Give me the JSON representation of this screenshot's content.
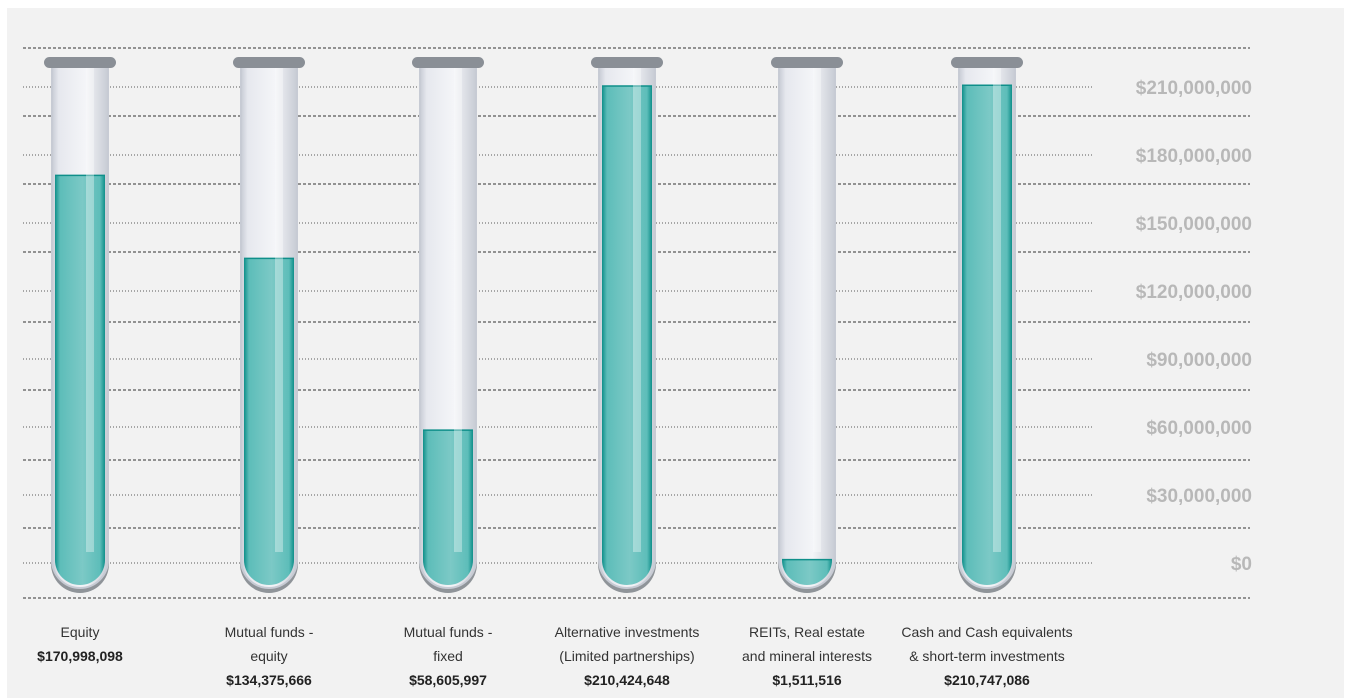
{
  "colors": {
    "liquid": "#5dbdb9",
    "liquid_edge": "#0f8f8a",
    "tube_glass": "#e6e8ee",
    "tube_outline": "#c7cbd4",
    "cap": "#8a8f96",
    "grid": "#333333",
    "tick_text": "#b8b8b8"
  },
  "chart_data": {
    "type": "bar",
    "style": "test-tube",
    "ylim": [
      0,
      210000000
    ],
    "y_ticks": [
      0,
      30000000,
      60000000,
      90000000,
      120000000,
      150000000,
      180000000,
      210000000
    ],
    "y_tick_labels": [
      "$0",
      "$30,000,000",
      "$60,000,000",
      "$90,000,000",
      "$120,000,000",
      "$150,000,000",
      "$180,000,000",
      "$210,000,000"
    ],
    "categories": [
      [
        "Equity"
      ],
      [
        "Mutual funds -",
        "equity"
      ],
      [
        "Mutual funds -",
        "fixed"
      ],
      [
        "Alternative investments",
        "(Limited partnerships)"
      ],
      [
        "REITs, Real estate",
        "and mineral interests"
      ],
      [
        "Cash and Cash equivalents",
        "& short-term investments"
      ]
    ],
    "values": [
      170998098,
      134375666,
      58605997,
      210424648,
      1511516,
      210747086
    ],
    "value_labels": [
      "$170,998,098",
      "$134,375,666",
      "$58,605,997",
      "$210,424,648",
      "$1,511,516",
      "$210,747,086"
    ],
    "grid": true
  }
}
